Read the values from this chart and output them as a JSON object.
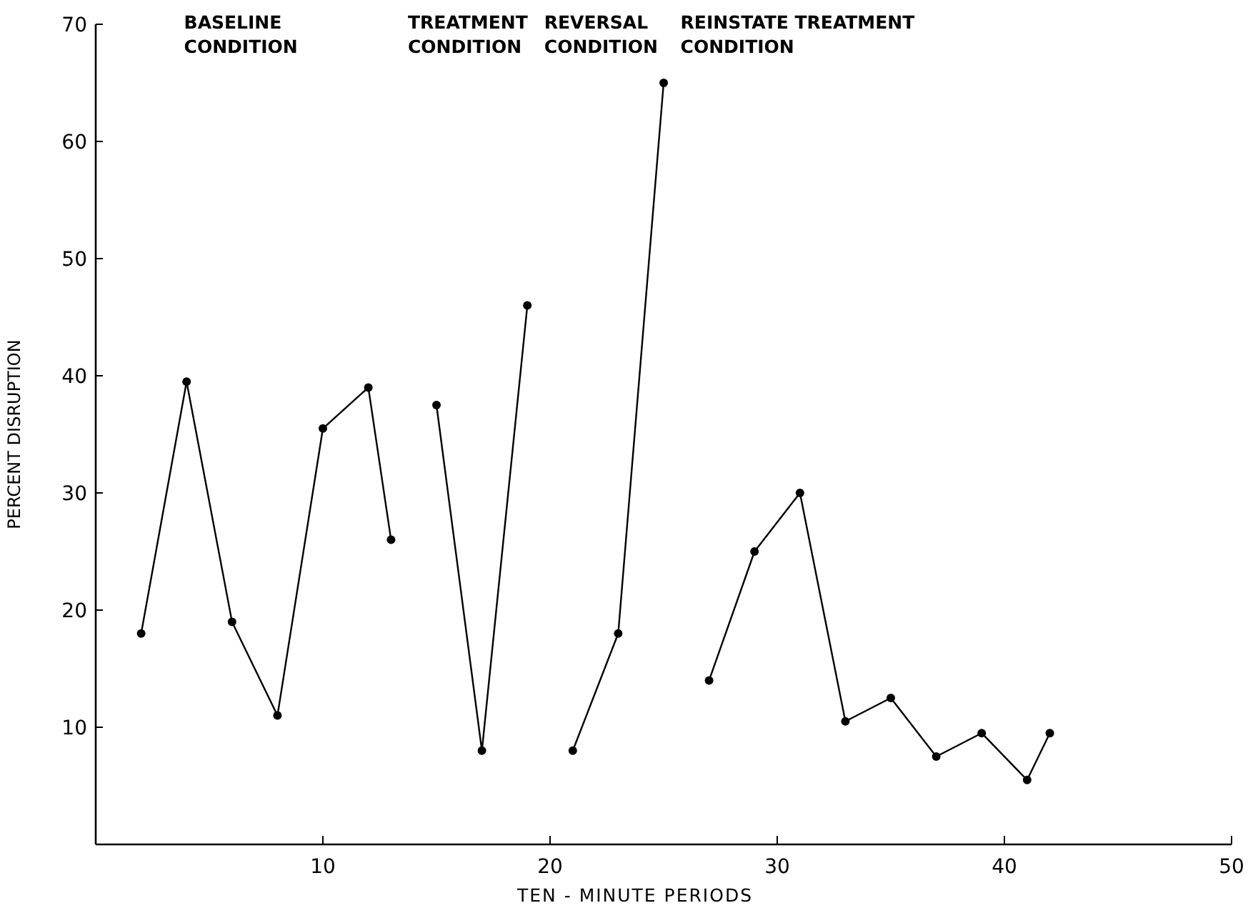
{
  "chart_data": {
    "type": "line",
    "xlabel": "TEN - MINUTE  PERIODS",
    "ylabel": "PERCENT DISRUPTION",
    "xlim": [
      0,
      50
    ],
    "xticks": [
      10,
      20,
      30,
      40,
      50
    ],
    "ylim": [
      0,
      70
    ],
    "yticks": [
      10,
      20,
      30,
      40,
      50,
      60,
      70
    ],
    "grid": false,
    "marker": "circle",
    "line_style": "solid",
    "annotations": [
      "BASELINE\nCONDITION",
      "TREATMENT\nCONDITION",
      "REVERSAL\nCONDITION",
      "REINSTATE  TREATMENT\nCONDITION"
    ],
    "series": [
      {
        "color": "#000000",
        "x": [
          2,
          4,
          6,
          8,
          10,
          12,
          13
        ],
        "values": [
          18,
          39.5,
          19,
          11,
          35.5,
          39,
          26
        ]
      },
      {
        "color": "#000000",
        "x": [
          15,
          17,
          19
        ],
        "values": [
          37.5,
          8,
          46
        ]
      },
      {
        "color": "#000000",
        "x": [
          21,
          23,
          25
        ],
        "values": [
          8,
          18,
          65
        ]
      },
      {
        "color": "#000000",
        "x": [
          27,
          29,
          31,
          33,
          35,
          37,
          39,
          41,
          42
        ],
        "values": [
          14,
          25,
          30,
          10.5,
          12.5,
          7.5,
          9.5,
          5.5,
          9.5
        ]
      }
    ]
  }
}
